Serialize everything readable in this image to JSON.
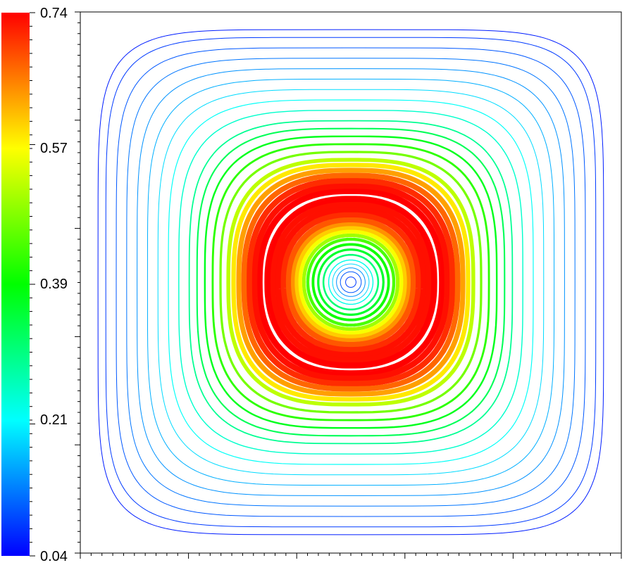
{
  "chart_data": {
    "type": "streamline",
    "colorbar": {
      "min": 0.04,
      "max": 0.74,
      "tick_labels": [
        "0.74",
        "0.57",
        "0.39",
        "0.21",
        "0.04"
      ],
      "tick_values": [
        0.74,
        0.57,
        0.39,
        0.21,
        0.04
      ],
      "colormap": [
        "#0000ff",
        "#00ffff",
        "#00ff00",
        "#ffff00",
        "#ff0000"
      ]
    },
    "rings": [
      {
        "r": 0.02,
        "value": 0.08
      },
      {
        "r": 0.04,
        "value": 0.1
      },
      {
        "r": 0.055,
        "value": 0.14
      },
      {
        "r": 0.07,
        "value": 0.19
      },
      {
        "r": 0.085,
        "value": 0.23
      },
      {
        "r": 0.105,
        "value": 0.31
      },
      {
        "r": 0.125,
        "value": 0.36
      },
      {
        "r": 0.145,
        "value": 0.4
      },
      {
        "r": 0.165,
        "value": 0.44
      },
      {
        "r": 0.18,
        "value": 0.5
      },
      {
        "r": 0.195,
        "value": 0.56
      },
      {
        "r": 0.21,
        "value": 0.6
      },
      {
        "r": 0.225,
        "value": 0.64
      },
      {
        "r": 0.24,
        "value": 0.68
      },
      {
        "r": 0.26,
        "value": 0.71
      },
      {
        "r": 0.28,
        "value": 0.73
      },
      {
        "r": 0.3,
        "value": 0.73
      },
      {
        "r": 0.32,
        "value": 0.74
      },
      {
        "r": 0.35,
        "value": 0.74
      },
      {
        "r": 0.37,
        "value": 0.73
      },
      {
        "r": 0.39,
        "value": 0.71
      },
      {
        "r": 0.41,
        "value": 0.67
      },
      {
        "r": 0.43,
        "value": 0.63
      },
      {
        "r": 0.45,
        "value": 0.58
      },
      {
        "r": 0.47,
        "value": 0.52
      },
      {
        "r": 0.5,
        "value": 0.47
      },
      {
        "r": 0.53,
        "value": 0.42
      },
      {
        "r": 0.56,
        "value": 0.37
      },
      {
        "r": 0.59,
        "value": 0.33
      },
      {
        "r": 0.62,
        "value": 0.29
      },
      {
        "r": 0.66,
        "value": 0.25
      },
      {
        "r": 0.7,
        "value": 0.22
      },
      {
        "r": 0.74,
        "value": 0.19
      },
      {
        "r": 0.78,
        "value": 0.16
      },
      {
        "r": 0.82,
        "value": 0.14
      },
      {
        "r": 0.86,
        "value": 0.12
      },
      {
        "r": 0.9,
        "value": 0.1
      },
      {
        "r": 0.94,
        "value": 0.08
      },
      {
        "r": 0.97,
        "value": 0.06
      }
    ]
  }
}
